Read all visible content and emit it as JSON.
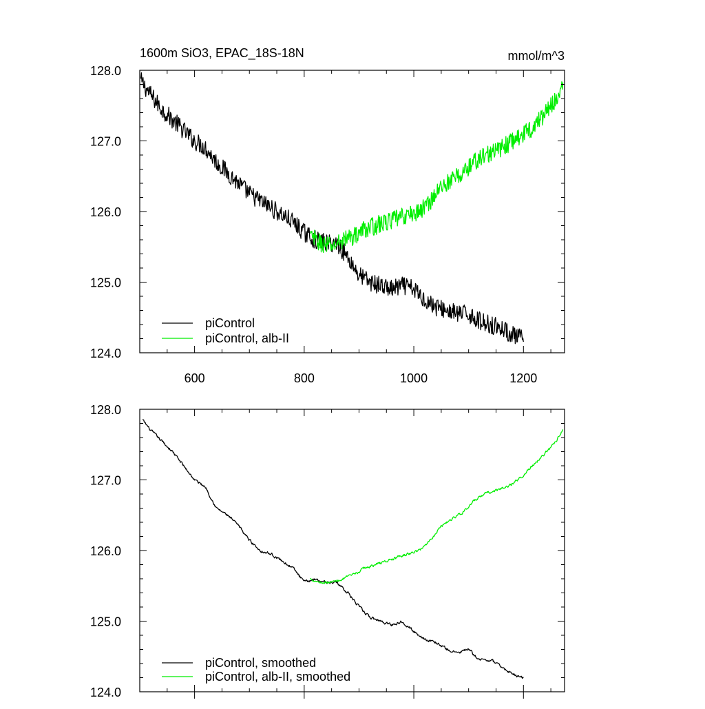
{
  "chart_data": [
    {
      "type": "line",
      "title": "1600m SiO3, EPAC_18S-18N",
      "units": "mmol/m^3",
      "xlim": [
        500,
        1275
      ],
      "ylim": [
        124.0,
        128.0
      ],
      "x_ticks": [
        600,
        800,
        1000,
        1200
      ],
      "x_tick_labels": [
        "600",
        "800",
        "1000",
        "1200"
      ],
      "y_ticks": [
        124.0,
        125.0,
        126.0,
        127.0,
        128.0
      ],
      "y_tick_labels": [
        "124.0",
        "125.0",
        "126.0",
        "127.0",
        "128.0"
      ],
      "grid": false,
      "legend_position": "bottom-left",
      "series": [
        {
          "name": "piControl",
          "color": "#000000",
          "noise": 0.13,
          "x": [
            502,
            520,
            540,
            560,
            580,
            600,
            620,
            640,
            660,
            680,
            700,
            720,
            740,
            760,
            780,
            800,
            820,
            840,
            860,
            880,
            900,
            920,
            940,
            960,
            980,
            1000,
            1020,
            1040,
            1060,
            1080,
            1100,
            1120,
            1140,
            1160,
            1180,
            1200
          ],
          "y": [
            127.85,
            127.65,
            127.45,
            127.3,
            127.15,
            127.0,
            126.9,
            126.7,
            126.55,
            126.4,
            126.25,
            126.15,
            126.05,
            125.95,
            125.85,
            125.7,
            125.6,
            125.55,
            125.55,
            125.35,
            125.1,
            125.0,
            124.95,
            124.9,
            124.95,
            124.9,
            124.75,
            124.65,
            124.6,
            124.55,
            124.55,
            124.45,
            124.4,
            124.35,
            124.25,
            124.2
          ]
        },
        {
          "name": "piControl, alb-II",
          "color": "#00ee00",
          "noise": 0.13,
          "x": [
            811,
            830,
            850,
            870,
            890,
            910,
            930,
            950,
            970,
            990,
            1010,
            1030,
            1050,
            1070,
            1090,
            1110,
            1130,
            1150,
            1170,
            1190,
            1210,
            1230,
            1250,
            1272
          ],
          "y": [
            125.65,
            125.55,
            125.5,
            125.6,
            125.65,
            125.75,
            125.8,
            125.85,
            125.9,
            125.95,
            126.0,
            126.15,
            126.35,
            126.45,
            126.55,
            126.7,
            126.8,
            126.85,
            126.95,
            127.05,
            127.15,
            127.3,
            127.5,
            127.75
          ]
        }
      ]
    },
    {
      "type": "line",
      "xlim": [
        500,
        1275
      ],
      "ylim": [
        124.0,
        128.0
      ],
      "x_ticks": [
        600,
        800,
        1000,
        1200
      ],
      "y_ticks": [
        124.0,
        125.0,
        126.0,
        127.0,
        128.0
      ],
      "y_tick_labels": [
        "124.0",
        "125.0",
        "126.0",
        "127.0",
        "128.0"
      ],
      "grid": false,
      "legend_position": "bottom-left",
      "series": [
        {
          "name": "piControl, smoothed",
          "color": "#000000",
          "noise": 0.04,
          "x": [
            505,
            520,
            540,
            560,
            580,
            600,
            620,
            640,
            660,
            680,
            700,
            720,
            740,
            760,
            780,
            800,
            820,
            840,
            860,
            880,
            900,
            920,
            940,
            960,
            980,
            1000,
            1020,
            1040,
            1060,
            1080,
            1100,
            1120,
            1140,
            1160,
            1180,
            1200
          ],
          "y": [
            127.85,
            127.7,
            127.55,
            127.4,
            127.2,
            127.0,
            126.9,
            126.6,
            126.5,
            126.35,
            126.15,
            126.0,
            125.95,
            125.85,
            125.75,
            125.55,
            125.6,
            125.55,
            125.55,
            125.4,
            125.2,
            125.05,
            125.0,
            124.95,
            125.0,
            124.85,
            124.75,
            124.7,
            124.6,
            124.55,
            124.6,
            124.45,
            124.45,
            124.35,
            124.25,
            124.2
          ]
        },
        {
          "name": "piControl, alb-II, smoothed",
          "color": "#00ee00",
          "noise": 0.04,
          "x": [
            811,
            830,
            850,
            870,
            890,
            910,
            930,
            950,
            970,
            990,
            1010,
            1030,
            1050,
            1070,
            1090,
            1110,
            1130,
            1150,
            1170,
            1190,
            1210,
            1230,
            1250,
            1272
          ],
          "y": [
            125.6,
            125.55,
            125.55,
            125.6,
            125.65,
            125.75,
            125.8,
            125.85,
            125.9,
            125.95,
            126.0,
            126.15,
            126.35,
            126.45,
            126.55,
            126.7,
            126.8,
            126.85,
            126.9,
            127.0,
            127.15,
            127.3,
            127.45,
            127.7
          ]
        }
      ]
    }
  ]
}
